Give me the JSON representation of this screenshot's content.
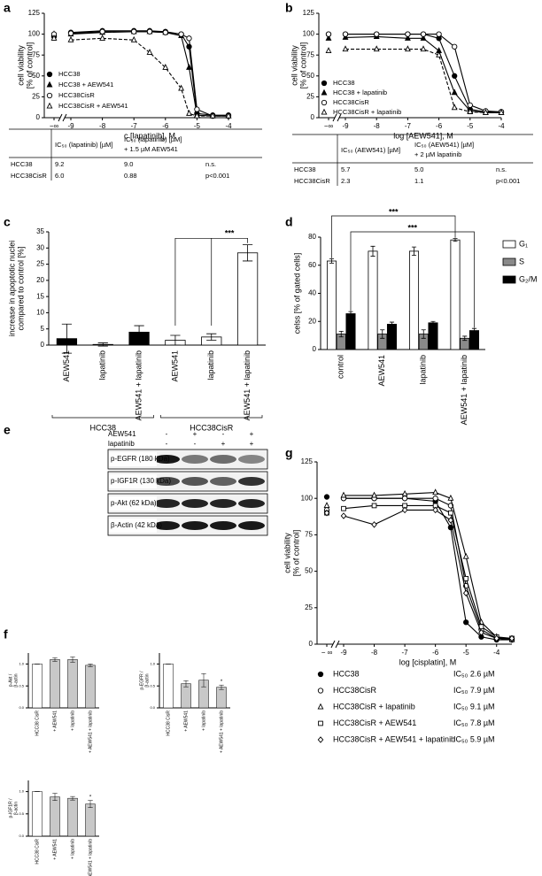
{
  "chart_data": [
    {
      "type": "line",
      "label": "a",
      "xlabel": "c [lapatinib], M",
      "ylabel": [
        "cell viability",
        "[% of control]"
      ],
      "break_label": "−∞",
      "xlim": [
        -9,
        -4
      ],
      "xticks": [
        -9,
        -8,
        -7,
        -6,
        -5,
        -4
      ],
      "ylim": [
        0,
        125
      ],
      "yticks": [
        0,
        25,
        50,
        75,
        100,
        125
      ],
      "x": [
        -9,
        -8,
        -7,
        -6.5,
        -6,
        -5.5,
        -5.25,
        -5,
        -4.5,
        -4
      ],
      "series": [
        {
          "name": "HCC38",
          "marker": "filled-circle",
          "dash": false,
          "control": 97,
          "values": [
            102,
            104,
            104,
            104,
            103,
            100,
            85,
            5,
            3,
            3
          ]
        },
        {
          "name": "HCC38 + AEW541",
          "marker": "filled-triangle",
          "dash": false,
          "control": 100,
          "values": [
            100,
            102,
            103,
            103,
            102,
            98,
            60,
            3,
            2,
            2
          ]
        },
        {
          "name": "HCC38CisR",
          "marker": "open-circle",
          "dash": false,
          "control": 100,
          "values": [
            101,
            103,
            103,
            103,
            102,
            100,
            95,
            10,
            2,
            2
          ]
        },
        {
          "name": "HCC38CisR + AEW541",
          "marker": "open-triangle",
          "dash": true,
          "control": 95,
          "values": [
            93,
            95,
            93,
            78,
            60,
            35,
            5,
            2,
            2,
            2
          ]
        }
      ]
    },
    {
      "type": "line",
      "label": "b",
      "xlabel": "log [AEW541], M",
      "ylabel": [
        "cell viability",
        "[% of control]"
      ],
      "break_label": "−∞",
      "xlim": [
        -9,
        -4
      ],
      "xticks": [
        -9,
        -8,
        -7,
        -6,
        -5,
        -4
      ],
      "ylim": [
        0,
        125
      ],
      "yticks": [
        0,
        25,
        50,
        75,
        100,
        125
      ],
      "x": [
        -9,
        -8,
        -7,
        -6.5,
        -6,
        -5.5,
        -5,
        -4.5,
        -4
      ],
      "series": [
        {
          "name": "HCC38",
          "marker": "filled-circle",
          "dash": false,
          "control": 100,
          "values": [
            100,
            100,
            100,
            100,
            95,
            50,
            10,
            7,
            7
          ]
        },
        {
          "name": "HCC38 + lapatinib",
          "marker": "filled-triangle",
          "dash": false,
          "control": 95,
          "values": [
            96,
            97,
            95,
            95,
            80,
            30,
            8,
            6,
            6
          ]
        },
        {
          "name": "HCC38CisR",
          "marker": "open-circle",
          "dash": false,
          "control": 100,
          "values": [
            100,
            100,
            100,
            100,
            100,
            85,
            15,
            8,
            7
          ]
        },
        {
          "name": "HCC38CisR + lapatinib",
          "marker": "open-triangle",
          "dash": true,
          "control": 80,
          "values": [
            82,
            82,
            82,
            82,
            75,
            12,
            7,
            6,
            6
          ]
        }
      ]
    },
    {
      "type": "bar",
      "label": "c",
      "ylabel": [
        "increase in apoptotic nuclei",
        "compared to control [%]"
      ],
      "ylim": [
        0,
        35
      ],
      "yticks": [
        0,
        5,
        10,
        15,
        20,
        25,
        30,
        35
      ],
      "categories": [
        "AEW541",
        "lapatinib",
        "AEW541 + lapatinib",
        "AEW541",
        "lapatinib",
        "AEW541 + lapatinib"
      ],
      "values": [
        2,
        0.2,
        4,
        1.5,
        2.5,
        28.5
      ],
      "errors": [
        4.5,
        0.5,
        2,
        1.5,
        1,
        2.5
      ],
      "colors": [
        "#000000",
        "#000000",
        "#000000",
        "#ffffff",
        "#ffffff",
        "#ffffff"
      ],
      "groups": [
        "HCC38",
        "HCC38CisR"
      ],
      "annotations": [
        "***"
      ]
    },
    {
      "type": "bar",
      "label": "d",
      "ylabel": [
        "celss  [% of gated cells]"
      ],
      "ylim": [
        0,
        80
      ],
      "yticks": [
        0,
        20,
        40,
        60,
        80
      ],
      "categories": [
        "control",
        "AEW541",
        "lapatinib",
        "AEW541 + lapatinib"
      ],
      "series": [
        {
          "name": "G₁",
          "color": "#ffffff",
          "values": [
            63,
            70,
            70,
            78
          ],
          "errors": [
            1.5,
            3.5,
            3,
            1
          ]
        },
        {
          "name": "S",
          "color": "#8a8a8a",
          "values": [
            11,
            11,
            11,
            8
          ],
          "errors": [
            2,
            3,
            3,
            1.5
          ]
        },
        {
          "name": "G₂/M",
          "color": "#000000",
          "values": [
            25.5,
            18,
            19,
            13.5
          ],
          "errors": [
            1.5,
            1.5,
            1,
            1.5
          ]
        }
      ],
      "annotations": [
        "***",
        "***"
      ]
    },
    {
      "type": "bar",
      "label": "f",
      "ylabel": [
        "p-Akt /",
        "β-actin"
      ],
      "ylim": [
        0,
        1.25
      ],
      "yticks": [
        {
          "value": 0,
          "label": "0.0"
        },
        {
          "value": 0.5,
          "label": "0.5"
        },
        {
          "value": 1,
          "label": "1.0"
        }
      ],
      "categories": [
        "HCC38 CisR",
        "+ AEW541",
        "+ lapatinib",
        "+ AEW541 + lapatinib"
      ],
      "values": [
        1.0,
        1.1,
        1.1,
        0.97
      ],
      "errors": [
        0,
        0.04,
        0.06,
        0.03
      ],
      "colors": [
        "#ffffff",
        "#c8c8c8",
        "#c8c8c8",
        "#c8c8c8"
      ]
    },
    {
      "type": "bar",
      "ylabel": [
        "p-EGFR /",
        "β-actin"
      ],
      "ylim": [
        0,
        1.25
      ],
      "yticks": [
        {
          "value": 0,
          "label": "0.0"
        },
        {
          "value": 0.5,
          "label": "0.5"
        },
        {
          "value": 1,
          "label": "1.0"
        }
      ],
      "categories": [
        "HCC38 CisR",
        "+ AEW541",
        "+ lapatinib",
        "+ AEW541 + lapatinib"
      ],
      "values": [
        1.0,
        0.55,
        0.63,
        0.47
      ],
      "errors": [
        0,
        0.07,
        0.15,
        0.05
      ],
      "colors": [
        "#ffffff",
        "#c8c8c8",
        "#c8c8c8",
        "#c8c8c8"
      ],
      "annotations": [
        "*"
      ]
    },
    {
      "type": "bar",
      "ylabel": [
        "p-IGF1R /",
        "β-actin"
      ],
      "ylim": [
        0,
        1.25
      ],
      "yticks": [
        {
          "value": 0,
          "label": "0.0"
        },
        {
          "value": 0.5,
          "label": "0.5"
        },
        {
          "value": 1,
          "label": "1.0"
        }
      ],
      "categories": [
        "HCC38 CisR",
        "+ AEW541",
        "+ lapatinib",
        "+ AEW541 + lapatinib"
      ],
      "values": [
        1.0,
        0.88,
        0.85,
        0.72
      ],
      "errors": [
        0,
        0.08,
        0.04,
        0.08
      ],
      "colors": [
        "#ffffff",
        "#c8c8c8",
        "#c8c8c8",
        "#c8c8c8"
      ],
      "annotations": [
        "*"
      ]
    },
    {
      "type": "line",
      "label": "g",
      "xlabel": "log [cisplatin], M",
      "ylabel": [
        "cell viability",
        "[% of control]"
      ],
      "break_label": "− ∞",
      "xlim": [
        -9,
        -3.5
      ],
      "xticks": [
        -9,
        -8,
        -7,
        -6,
        -5,
        -4
      ],
      "ylim": [
        0,
        125
      ],
      "yticks": [
        0,
        25,
        50,
        75,
        100,
        125
      ],
      "x": [
        -9,
        -8,
        -7,
        -6,
        -5.5,
        -5,
        -4.5,
        -4,
        -3.5
      ],
      "series": [
        {
          "name": "HCC38",
          "ic50": "IC₅₀ 2.6 µM",
          "marker": "filled-circle",
          "dash": false,
          "control": 101,
          "values": [
            100,
            100,
            100,
            98,
            80,
            15,
            5,
            3,
            3
          ]
        },
        {
          "name": "HCC38CisR",
          "ic50": "IC₅₀ 7.9 µM",
          "marker": "open-circle",
          "dash": false,
          "control": 92,
          "values": [
            100,
            100,
            100,
            100,
            95,
            40,
            10,
            4,
            3
          ]
        },
        {
          "name": "HCC38CisR + lapatinib",
          "ic50": "IC₅₀ 9.1 µM",
          "marker": "open-triangle",
          "dash": false,
          "control": 95,
          "values": [
            102,
            102,
            103,
            104,
            100,
            60,
            15,
            5,
            3
          ]
        },
        {
          "name": "HCC38CisR + AEW541",
          "ic50": "IC₅₀ 7.8 µM",
          "marker": "open-square",
          "dash": false,
          "control": 90,
          "values": [
            93,
            95,
            95,
            95,
            90,
            45,
            12,
            5,
            4
          ]
        },
        {
          "name": "HCC38CisR + AEW541 + lapatinib",
          "ic50": "IC₅₀ 5.9 µM",
          "marker": "open-diamond",
          "dash": false,
          "control": 90,
          "values": [
            88,
            82,
            92,
            92,
            85,
            35,
            8,
            4,
            4
          ]
        }
      ]
    }
  ],
  "tables": [
    {
      "header": [
        [
          "IC₅₀ (lapatinib) [µM]"
        ],
        [
          "IC₅₀ (lapatinib) [µM]",
          "+ 1.5 µM AEW541"
        ]
      ],
      "rows": [
        [
          "HCC38",
          "9.2",
          "9.0",
          "n.s."
        ],
        [
          "HCC38CisR",
          "6.0",
          "0.88",
          "p<0.001"
        ]
      ]
    },
    {
      "header": [
        [
          "IC₅₀ (AEW541) [µM]"
        ],
        [
          "IC₅₀ (AEW541) [µM]",
          "+ 2 µM lapatinib"
        ]
      ],
      "rows": [
        [
          "HCC38",
          "5.7",
          "5.0",
          "n.s."
        ],
        [
          "HCC38CisR",
          "2.3",
          "1.1",
          "p<0.001"
        ]
      ]
    }
  ],
  "blot": {
    "label": "e",
    "treatments": [
      {
        "name": "AEW541",
        "signs": [
          "-",
          "+",
          "-",
          "+"
        ]
      },
      {
        "name": "lapatinib",
        "signs": [
          "-",
          "-",
          "+",
          "+"
        ]
      }
    ],
    "rows": [
      "p-EGFR (180 kDa)",
      "p-IGF1R (130 kDa)",
      "p-Akt (62 kDa)",
      "β-Actin (42 kDa)"
    ]
  }
}
